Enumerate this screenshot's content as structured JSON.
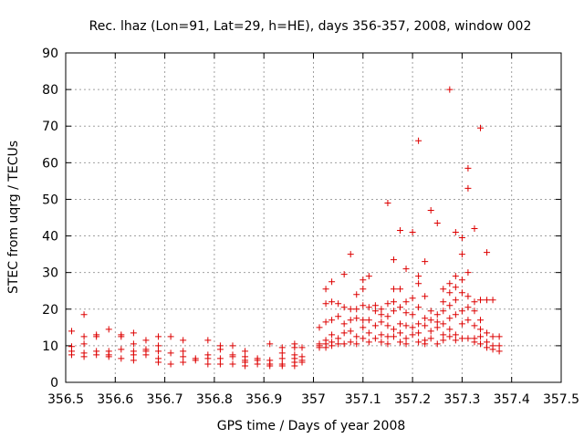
{
  "chart_data": {
    "type": "scatter",
    "title": "Rec. lhaz (Lon=91, Lat=29, h=HE), days 356-357, 2008, window 002",
    "xlabel": "GPS time / Days of year 2008",
    "ylabel": "STEC from uqrg / TECUs",
    "xlim": [
      356.5,
      357.5
    ],
    "ylim": [
      0,
      90
    ],
    "x_ticks": [
      "356.5",
      "356.6",
      "356.7",
      "356.8",
      "356.9",
      "357",
      "357.1",
      "357.2",
      "357.3",
      "357.4",
      "357.5"
    ],
    "y_ticks": [
      "0",
      "10",
      "20",
      "30",
      "40",
      "50",
      "60",
      "70",
      "80",
      "90"
    ],
    "grid": true,
    "legend": "none",
    "marker": "+",
    "color": "#dd0000",
    "points": [
      [
        356.512,
        14.0
      ],
      [
        356.512,
        9.8
      ],
      [
        356.512,
        8.5
      ],
      [
        356.512,
        7.5
      ],
      [
        356.537,
        18.5
      ],
      [
        356.537,
        12.5
      ],
      [
        356.537,
        10.5
      ],
      [
        356.537,
        8.0
      ],
      [
        356.537,
        7.0
      ],
      [
        356.562,
        13.0
      ],
      [
        356.562,
        12.5
      ],
      [
        356.562,
        8.5
      ],
      [
        356.562,
        7.5
      ],
      [
        356.587,
        14.5
      ],
      [
        356.587,
        8.5
      ],
      [
        356.587,
        7.5
      ],
      [
        356.587,
        7.0
      ],
      [
        356.612,
        13.0
      ],
      [
        356.612,
        12.5
      ],
      [
        356.612,
        9.0
      ],
      [
        356.612,
        6.5
      ],
      [
        356.637,
        13.5
      ],
      [
        356.637,
        10.5
      ],
      [
        356.637,
        8.5
      ],
      [
        356.637,
        7.5
      ],
      [
        356.637,
        6.0
      ],
      [
        356.662,
        11.5
      ],
      [
        356.662,
        9.0
      ],
      [
        356.662,
        8.5
      ],
      [
        356.662,
        7.5
      ],
      [
        356.687,
        12.5
      ],
      [
        356.687,
        10.0
      ],
      [
        356.687,
        8.5
      ],
      [
        356.687,
        6.5
      ],
      [
        356.687,
        5.5
      ],
      [
        356.712,
        12.5
      ],
      [
        356.712,
        8.0
      ],
      [
        356.712,
        5.0
      ],
      [
        356.737,
        11.5
      ],
      [
        356.737,
        8.5
      ],
      [
        356.737,
        7.0
      ],
      [
        356.737,
        5.5
      ],
      [
        356.762,
        6.5
      ],
      [
        356.762,
        6.0
      ],
      [
        356.787,
        11.5
      ],
      [
        356.787,
        7.5
      ],
      [
        356.787,
        6.5
      ],
      [
        356.787,
        5.0
      ],
      [
        356.812,
        10.0
      ],
      [
        356.812,
        9.0
      ],
      [
        356.812,
        6.5
      ],
      [
        356.812,
        5.0
      ],
      [
        356.837,
        10.0
      ],
      [
        356.837,
        7.5
      ],
      [
        356.837,
        7.0
      ],
      [
        356.837,
        5.0
      ],
      [
        356.862,
        8.5
      ],
      [
        356.862,
        7.0
      ],
      [
        356.862,
        6.0
      ],
      [
        356.862,
        5.5
      ],
      [
        356.862,
        4.5
      ],
      [
        356.887,
        6.5
      ],
      [
        356.887,
        6.0
      ],
      [
        356.887,
        5.0
      ],
      [
        356.912,
        10.5
      ],
      [
        356.912,
        6.0
      ],
      [
        356.912,
        5.0
      ],
      [
        356.912,
        4.5
      ],
      [
        356.937,
        9.5
      ],
      [
        356.937,
        8.0
      ],
      [
        356.937,
        6.5
      ],
      [
        356.937,
        5.0
      ],
      [
        356.937,
        4.5
      ],
      [
        356.962,
        10.5
      ],
      [
        356.962,
        9.5
      ],
      [
        356.962,
        7.5
      ],
      [
        356.962,
        6.5
      ],
      [
        356.962,
        5.5
      ],
      [
        356.962,
        4.5
      ],
      [
        356.977,
        9.5
      ],
      [
        356.977,
        7.0
      ],
      [
        356.977,
        6.0
      ],
      [
        356.977,
        5.5
      ],
      [
        357.012,
        15.0
      ],
      [
        357.012,
        10.5
      ],
      [
        357.012,
        10.0
      ],
      [
        357.012,
        9.5
      ],
      [
        357.025,
        25.5
      ],
      [
        357.025,
        21.5
      ],
      [
        357.025,
        16.5
      ],
      [
        357.025,
        11.5
      ],
      [
        357.025,
        10.5
      ],
      [
        357.025,
        9.5
      ],
      [
        357.037,
        27.5
      ],
      [
        357.037,
        22.0
      ],
      [
        357.037,
        17.0
      ],
      [
        357.037,
        13.0
      ],
      [
        357.037,
        11.0
      ],
      [
        357.037,
        10.0
      ],
      [
        357.05,
        21.5
      ],
      [
        357.05,
        18.0
      ],
      [
        357.05,
        12.0
      ],
      [
        357.05,
        10.5
      ],
      [
        357.062,
        29.5
      ],
      [
        357.062,
        20.5
      ],
      [
        357.062,
        16.0
      ],
      [
        357.062,
        13.5
      ],
      [
        357.062,
        10.5
      ],
      [
        357.075,
        35.0
      ],
      [
        357.075,
        20.0
      ],
      [
        357.075,
        17.0
      ],
      [
        357.075,
        14.0
      ],
      [
        357.075,
        11.0
      ],
      [
        357.087,
        24.0
      ],
      [
        357.087,
        20.0
      ],
      [
        357.087,
        17.5
      ],
      [
        357.087,
        12.5
      ],
      [
        357.087,
        10.5
      ],
      [
        357.1,
        28.0
      ],
      [
        357.1,
        25.5
      ],
      [
        357.1,
        21.0
      ],
      [
        357.1,
        17.0
      ],
      [
        357.1,
        15.0
      ],
      [
        357.1,
        12.0
      ],
      [
        357.112,
        29.0
      ],
      [
        357.112,
        20.5
      ],
      [
        357.112,
        17.0
      ],
      [
        357.112,
        13.5
      ],
      [
        357.112,
        11.0
      ],
      [
        357.125,
        21.0
      ],
      [
        357.125,
        19.5
      ],
      [
        357.125,
        15.5
      ],
      [
        357.125,
        12.0
      ],
      [
        357.137,
        20.0
      ],
      [
        357.137,
        18.5
      ],
      [
        357.137,
        16.5
      ],
      [
        357.137,
        13.0
      ],
      [
        357.137,
        11.0
      ],
      [
        357.15,
        49.0
      ],
      [
        357.15,
        21.5
      ],
      [
        357.15,
        18.0
      ],
      [
        357.15,
        15.5
      ],
      [
        357.15,
        12.5
      ],
      [
        357.15,
        10.5
      ],
      [
        357.162,
        33.5
      ],
      [
        357.162,
        25.5
      ],
      [
        357.162,
        22.0
      ],
      [
        357.162,
        19.5
      ],
      [
        357.162,
        14.5
      ],
      [
        357.162,
        12.5
      ],
      [
        357.175,
        41.5
      ],
      [
        357.175,
        25.5
      ],
      [
        357.175,
        20.5
      ],
      [
        357.175,
        16.0
      ],
      [
        357.175,
        13.5
      ],
      [
        357.175,
        11.0
      ],
      [
        357.187,
        31.0
      ],
      [
        357.187,
        22.0
      ],
      [
        357.187,
        19.0
      ],
      [
        357.187,
        15.5
      ],
      [
        357.187,
        12.0
      ],
      [
        357.187,
        10.5
      ],
      [
        357.2,
        41.0
      ],
      [
        357.2,
        23.0
      ],
      [
        357.2,
        18.5
      ],
      [
        357.2,
        15.0
      ],
      [
        357.2,
        13.0
      ],
      [
        357.212,
        66.0
      ],
      [
        357.212,
        29.0
      ],
      [
        357.212,
        27.0
      ],
      [
        357.212,
        20.5
      ],
      [
        357.212,
        16.0
      ],
      [
        357.212,
        13.5
      ],
      [
        357.212,
        11.0
      ],
      [
        357.225,
        33.0
      ],
      [
        357.225,
        23.5
      ],
      [
        357.225,
        17.5
      ],
      [
        357.225,
        15.5
      ],
      [
        357.225,
        11.5
      ],
      [
        357.225,
        10.5
      ],
      [
        357.237,
        47.0
      ],
      [
        357.237,
        19.5
      ],
      [
        357.237,
        17.0
      ],
      [
        357.237,
        14.0
      ],
      [
        357.237,
        12.0
      ],
      [
        357.25,
        43.5
      ],
      [
        357.25,
        18.5
      ],
      [
        357.25,
        16.5
      ],
      [
        357.25,
        15.0
      ],
      [
        357.25,
        10.5
      ],
      [
        357.262,
        25.5
      ],
      [
        357.262,
        22.0
      ],
      [
        357.262,
        19.5
      ],
      [
        357.262,
        16.0
      ],
      [
        357.262,
        13.0
      ],
      [
        357.262,
        11.5
      ],
      [
        357.275,
        80.0
      ],
      [
        357.275,
        27.0
      ],
      [
        357.275,
        24.5
      ],
      [
        357.275,
        21.0
      ],
      [
        357.275,
        17.5
      ],
      [
        357.275,
        14.5
      ],
      [
        357.275,
        12.5
      ],
      [
        357.287,
        41.0
      ],
      [
        357.287,
        29.0
      ],
      [
        357.287,
        26.0
      ],
      [
        357.287,
        22.5
      ],
      [
        357.287,
        18.5
      ],
      [
        357.287,
        13.0
      ],
      [
        357.287,
        11.5
      ],
      [
        357.3,
        39.5
      ],
      [
        357.3,
        35.0
      ],
      [
        357.3,
        28.0
      ],
      [
        357.3,
        24.5
      ],
      [
        357.3,
        19.5
      ],
      [
        357.3,
        16.0
      ],
      [
        357.3,
        12.0
      ],
      [
        357.312,
        58.5
      ],
      [
        357.312,
        53.0
      ],
      [
        357.312,
        30.0
      ],
      [
        357.312,
        23.5
      ],
      [
        357.312,
        20.5
      ],
      [
        357.312,
        17.0
      ],
      [
        357.312,
        12.0
      ],
      [
        357.325,
        42.0
      ],
      [
        357.325,
        22.0
      ],
      [
        357.325,
        19.5
      ],
      [
        357.325,
        15.5
      ],
      [
        357.325,
        12.0
      ],
      [
        357.325,
        11.0
      ],
      [
        357.337,
        69.5
      ],
      [
        357.337,
        22.5
      ],
      [
        357.337,
        17.0
      ],
      [
        357.337,
        14.5
      ],
      [
        357.337,
        12.5
      ],
      [
        357.337,
        10.5
      ],
      [
        357.35,
        35.5
      ],
      [
        357.35,
        22.5
      ],
      [
        357.35,
        13.5
      ],
      [
        357.35,
        11.0
      ],
      [
        357.35,
        9.5
      ],
      [
        357.362,
        22.5
      ],
      [
        357.362,
        12.5
      ],
      [
        357.362,
        10.0
      ],
      [
        357.362,
        9.0
      ],
      [
        357.375,
        12.5
      ],
      [
        357.375,
        10.0
      ],
      [
        357.375,
        8.5
      ]
    ]
  }
}
